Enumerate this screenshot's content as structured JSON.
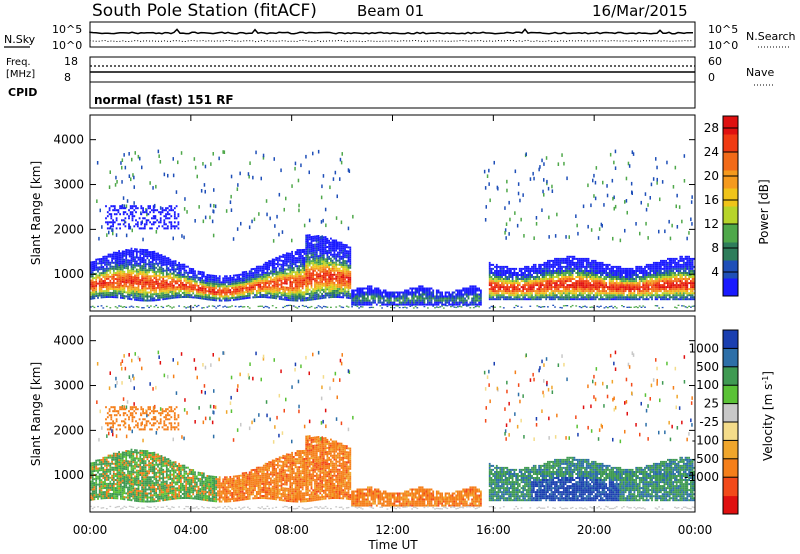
{
  "header": {
    "station": "South Pole Station (fitACF)",
    "beam": "Beam 01",
    "date": "16/Mar/2015"
  },
  "nsky_panel": {
    "left_label": "N.Sky",
    "left_ticks": [
      "10^5",
      "10^0"
    ],
    "right_label": "N.Search",
    "right_ticks": [
      "10^5",
      "10^0"
    ]
  },
  "freq_panel": {
    "left_label_1": "Freq.",
    "left_label_2": "[MHz]",
    "left_ticks": [
      "18",
      "8"
    ],
    "right_label": "Nave",
    "right_ticks": [
      "60",
      "0"
    ]
  },
  "cpid_panel": {
    "label": "CPID",
    "text": "normal (fast) 151 RF"
  },
  "colors": {
    "power_scale": [
      "#1a1aff",
      "#1f4fb8",
      "#2e7d5b",
      "#4fa84a",
      "#b7d42a",
      "#f0c419",
      "#f59a1e",
      "#f26a18",
      "#f03a12",
      "#e01010"
    ],
    "velocity_scale": [
      "#e01010",
      "#f34a1a",
      "#f57f1a",
      "#f0a62c",
      "#f4dc8a",
      "#c8c8c8",
      "#5ac236",
      "#3f9a52",
      "#2d6fa8",
      "#1a3fb0"
    ]
  },
  "chart_data": [
    {
      "type": "heatmap",
      "panel": "power",
      "title": "",
      "xlabel": "Time UT",
      "ylabel": "Slant Range [km]",
      "x_ticks": [
        "00:00",
        "04:00",
        "08:00",
        "12:00",
        "16:00",
        "20:00",
        "00:00"
      ],
      "xlim_hours": [
        0,
        24
      ],
      "y_ticks": [
        1000,
        2000,
        3000,
        4000
      ],
      "ylim_km": [
        180,
        4550
      ],
      "colorbar_label": "Power [dB]",
      "colorbar_ticks": [
        4,
        8,
        12,
        16,
        20,
        24,
        28
      ],
      "colorbar_range": [
        0,
        30
      ],
      "echo_regions": [
        {
          "t": [
            0.0,
            10.3
          ],
          "r": [
            450,
            1700
          ],
          "peak_db": 28
        },
        {
          "t": [
            10.3,
            15.5
          ],
          "r": [
            300,
            750
          ],
          "peak_db": 10
        },
        {
          "t": [
            15.8,
            24.0
          ],
          "r": [
            400,
            1500
          ],
          "peak_db": 28
        },
        {
          "t": [
            0.5,
            3.5
          ],
          "r": [
            1900,
            2600
          ],
          "peak_db": 6
        }
      ]
    },
    {
      "type": "heatmap",
      "panel": "velocity",
      "title": "",
      "xlabel": "Time UT",
      "ylabel": "Slant Range [km]",
      "x_ticks": [
        "00:00",
        "04:00",
        "08:00",
        "12:00",
        "16:00",
        "20:00",
        "00:00"
      ],
      "xlim_hours": [
        0,
        24
      ],
      "y_ticks": [
        1000,
        2000,
        3000,
        4000
      ],
      "ylim_km": [
        180,
        4550
      ],
      "colorbar_label": "Velocity [m s^-1]",
      "colorbar_ticks": [
        "1000",
        "500",
        "100",
        "25",
        "-25",
        "-100",
        "-500",
        "-1000"
      ],
      "echo_regions": [
        {
          "t": [
            0.0,
            6.0
          ],
          "r": [
            300,
            1700
          ],
          "velocity": "-100 to 500 (mixed, mostly green)"
        },
        {
          "t": [
            3.5,
            10.3
          ],
          "r": [
            400,
            1700
          ],
          "velocity": "-100 to -500 (orange)"
        },
        {
          "t": [
            10.3,
            15.5
          ],
          "r": [
            300,
            700
          ],
          "velocity": "-100 (orange)"
        },
        {
          "t": [
            15.8,
            24.0
          ],
          "r": [
            400,
            1400
          ],
          "velocity": "25 to 1000 (green/blue)"
        }
      ]
    }
  ]
}
